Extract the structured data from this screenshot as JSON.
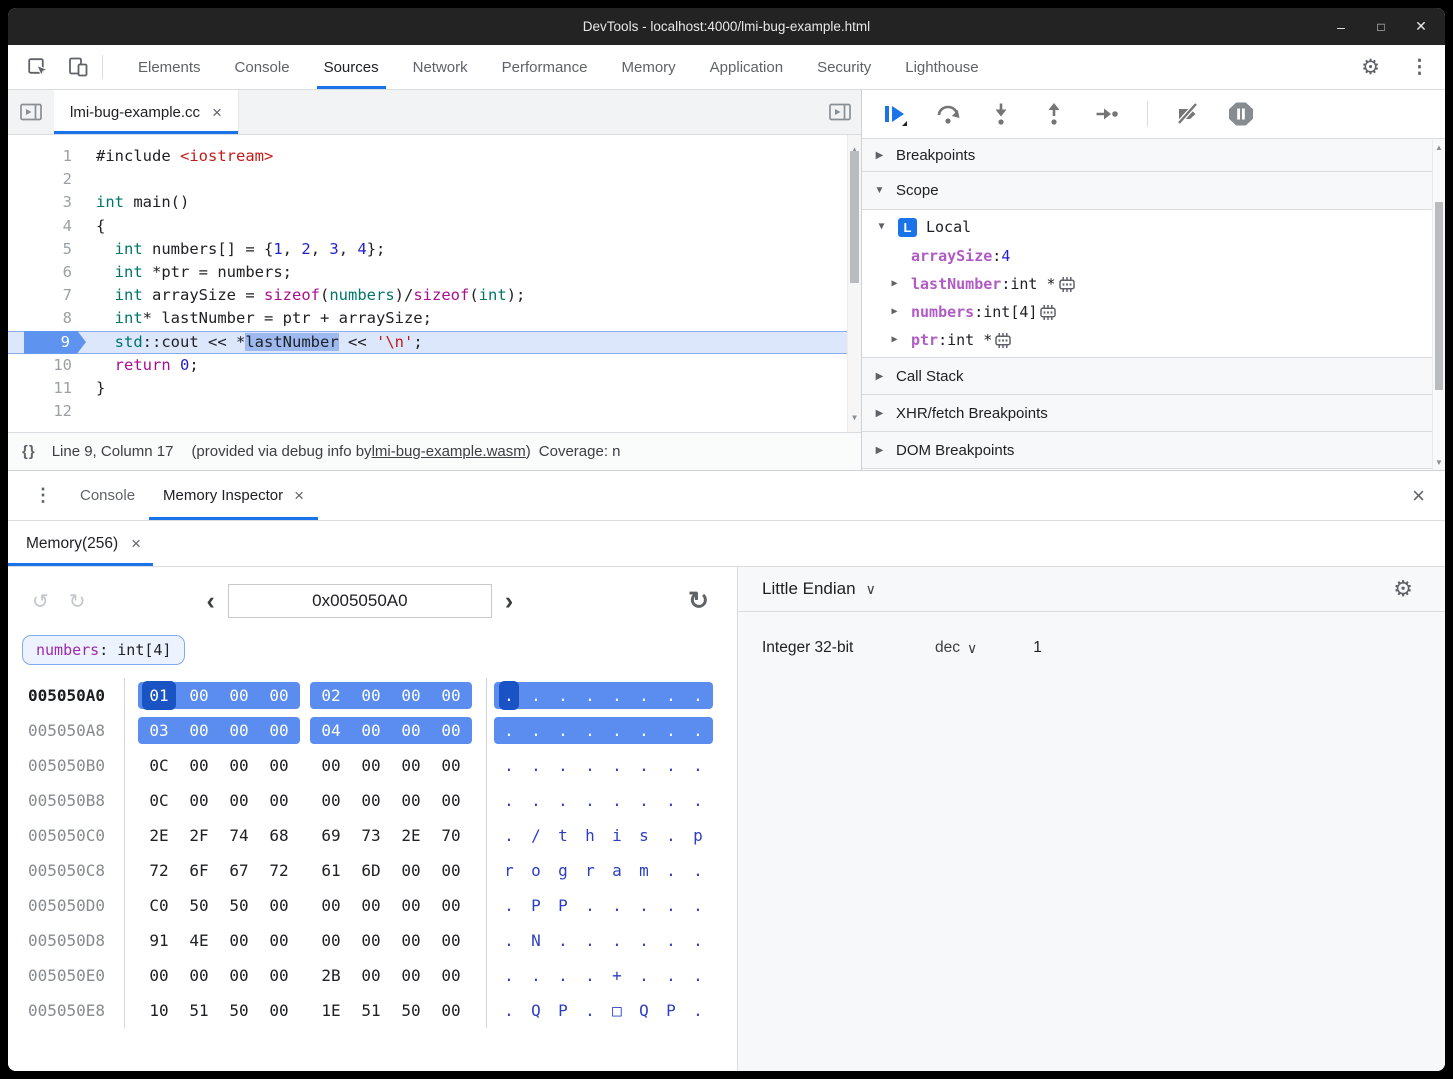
{
  "icons": {
    "minimize": "–",
    "maximize": "□",
    "close": "✕",
    "close_small": "×",
    "kebab": "⋮",
    "gear": "⚙",
    "chevron_left": "‹",
    "chevron_right": "›",
    "chevron_down": "∨",
    "undo": "↺",
    "redo": "↻",
    "refresh": "↻",
    "tri_right": "▶",
    "tri_down": "▼",
    "braces": "{}",
    "scroll_up": "▲",
    "scroll_down": "▼"
  },
  "colors": {
    "accent": "#1a73e8",
    "hex_highlight": "#5b8cf0",
    "hex_selected": "#1a53c4"
  },
  "titlebar": {
    "title": "DevTools - localhost:4000/lmi-bug-example.html"
  },
  "main_tabs": {
    "active": "Sources",
    "items": [
      "Elements",
      "Console",
      "Sources",
      "Network",
      "Performance",
      "Memory",
      "Application",
      "Security",
      "Lighthouse"
    ]
  },
  "sources": {
    "file_tab": "lmi-bug-example.cc",
    "status": {
      "position": "Line 9, Column 17",
      "provided_prefix": "(provided via debug info by ",
      "wasm_link": "lmi-bug-example.wasm",
      "provided_suffix": ")",
      "coverage": "Coverage: n"
    },
    "code": [
      {
        "n": 1,
        "t": [
          [
            "#include ",
            "pln"
          ],
          [
            "<iostream>",
            "str"
          ]
        ]
      },
      {
        "n": 2,
        "t": []
      },
      {
        "n": 3,
        "t": [
          [
            "int",
            "typ"
          ],
          [
            " main()",
            "pln"
          ]
        ]
      },
      {
        "n": 4,
        "t": [
          [
            "{",
            "pln"
          ]
        ]
      },
      {
        "n": 5,
        "t": [
          [
            "  ",
            "pln"
          ],
          [
            "int",
            "typ"
          ],
          [
            " numbers[] = {",
            "pln"
          ],
          [
            "1",
            "num"
          ],
          [
            ", ",
            "pln"
          ],
          [
            "2",
            "num"
          ],
          [
            ", ",
            "pln"
          ],
          [
            "3",
            "num"
          ],
          [
            ", ",
            "pln"
          ],
          [
            "4",
            "num"
          ],
          [
            "};",
            "pln"
          ]
        ]
      },
      {
        "n": 6,
        "t": [
          [
            "  ",
            "pln"
          ],
          [
            "int",
            "typ"
          ],
          [
            " *ptr = numbers;",
            "pln"
          ]
        ]
      },
      {
        "n": 7,
        "t": [
          [
            "  ",
            "pln"
          ],
          [
            "int",
            "typ"
          ],
          [
            " arraySize = ",
            "pln"
          ],
          [
            "sizeof",
            "kw"
          ],
          [
            "(",
            "pln"
          ],
          [
            "numbers",
            "typ"
          ],
          [
            ")/",
            "pln"
          ],
          [
            "sizeof",
            "kw"
          ],
          [
            "(",
            "pln"
          ],
          [
            "int",
            "typ"
          ],
          [
            ");",
            "pln"
          ]
        ]
      },
      {
        "n": 8,
        "t": [
          [
            "  ",
            "pln"
          ],
          [
            "int",
            "typ"
          ],
          [
            "* lastNumber = ptr + arraySize;",
            "pln"
          ]
        ]
      },
      {
        "n": 9,
        "current": true,
        "t": [
          [
            "  ",
            "pln"
          ],
          [
            "std",
            "typ"
          ],
          [
            "::cout << *",
            "pln"
          ],
          [
            "lastNumber",
            "sel"
          ],
          [
            " << ",
            "pln"
          ],
          [
            "'\\n'",
            "str"
          ],
          [
            ";",
            "pln"
          ]
        ]
      },
      {
        "n": 10,
        "t": [
          [
            "  ",
            "pln"
          ],
          [
            "return",
            "kw"
          ],
          [
            " ",
            "pln"
          ],
          [
            "0",
            "num"
          ],
          [
            ";",
            "pln"
          ]
        ]
      },
      {
        "n": 11,
        "t": [
          [
            "}",
            "pln"
          ]
        ]
      },
      {
        "n": 12,
        "t": []
      }
    ]
  },
  "debugger": {
    "breakpoints_label": "Breakpoints",
    "scope_label": "Scope",
    "call_stack_label": "Call Stack",
    "xhr_label": "XHR/fetch Breakpoints",
    "dom_label": "DOM Breakpoints",
    "scope": {
      "badge": "L",
      "local_label": "Local",
      "vars": [
        {
          "name": "arraySize",
          "sep": ": ",
          "value": "4",
          "value_kind": "num",
          "expandable": false,
          "memicon": false
        },
        {
          "name": "lastNumber",
          "sep": ": ",
          "value": "int *",
          "value_kind": "type",
          "expandable": true,
          "memicon": true
        },
        {
          "name": "numbers",
          "sep": ": ",
          "value": "int[4]",
          "value_kind": "type",
          "expandable": true,
          "memicon": true
        },
        {
          "name": "ptr",
          "sep": ": ",
          "value": "int *",
          "value_kind": "type",
          "expandable": true,
          "memicon": true
        }
      ]
    }
  },
  "drawer": {
    "tabs": [
      "Console",
      "Memory Inspector"
    ],
    "active": "Memory Inspector"
  },
  "memory": {
    "tab_label": "Memory(256)",
    "address_input": "0x005050A0",
    "chip": {
      "name": "numbers",
      "type": ": int[4]"
    },
    "rows": [
      {
        "addr": "005050A0",
        "focus": true,
        "hl": true,
        "sel": 0,
        "bytes": [
          "01",
          "00",
          "00",
          "00",
          "02",
          "00",
          "00",
          "00"
        ],
        "ascii": [
          ".",
          ".",
          ".",
          ".",
          ".",
          ".",
          ".",
          "."
        ]
      },
      {
        "addr": "005050A8",
        "hl": true,
        "bytes": [
          "03",
          "00",
          "00",
          "00",
          "04",
          "00",
          "00",
          "00"
        ],
        "ascii": [
          ".",
          ".",
          ".",
          ".",
          ".",
          ".",
          ".",
          "."
        ]
      },
      {
        "addr": "005050B0",
        "bytes": [
          "0C",
          "00",
          "00",
          "00",
          "00",
          "00",
          "00",
          "00"
        ],
        "ascii": [
          ".",
          ".",
          ".",
          ".",
          ".",
          ".",
          ".",
          "."
        ]
      },
      {
        "addr": "005050B8",
        "bytes": [
          "0C",
          "00",
          "00",
          "00",
          "00",
          "00",
          "00",
          "00"
        ],
        "ascii": [
          ".",
          ".",
          ".",
          ".",
          ".",
          ".",
          ".",
          "."
        ]
      },
      {
        "addr": "005050C0",
        "bytes": [
          "2E",
          "2F",
          "74",
          "68",
          "69",
          "73",
          "2E",
          "70"
        ],
        "ascii": [
          ".",
          "/",
          "t",
          "h",
          "i",
          "s",
          ".",
          "p"
        ]
      },
      {
        "addr": "005050C8",
        "bytes": [
          "72",
          "6F",
          "67",
          "72",
          "61",
          "6D",
          "00",
          "00"
        ],
        "ascii": [
          "r",
          "o",
          "g",
          "r",
          "a",
          "m",
          ".",
          "."
        ]
      },
      {
        "addr": "005050D0",
        "bytes": [
          "C0",
          "50",
          "50",
          "00",
          "00",
          "00",
          "00",
          "00"
        ],
        "ascii": [
          ".",
          "P",
          "P",
          ".",
          ".",
          ".",
          ".",
          "."
        ]
      },
      {
        "addr": "005050D8",
        "bytes": [
          "91",
          "4E",
          "00",
          "00",
          "00",
          "00",
          "00",
          "00"
        ],
        "ascii": [
          ".",
          "N",
          ".",
          ".",
          ".",
          ".",
          ".",
          "."
        ]
      },
      {
        "addr": "005050E0",
        "bytes": [
          "00",
          "00",
          "00",
          "00",
          "2B",
          "00",
          "00",
          "00"
        ],
        "ascii": [
          ".",
          ".",
          ".",
          ".",
          "+",
          ".",
          ".",
          "."
        ]
      },
      {
        "addr": "005050E8",
        "bytes": [
          "10",
          "51",
          "50",
          "00",
          "1E",
          "51",
          "50",
          "00"
        ],
        "ascii": [
          ".",
          "Q",
          "P",
          ".",
          "□",
          "Q",
          "P",
          "."
        ]
      }
    ],
    "interpreter": {
      "endianness": "Little Endian",
      "rows": [
        {
          "type": "Integer 32-bit",
          "format": "dec",
          "value": "1"
        }
      ]
    }
  }
}
